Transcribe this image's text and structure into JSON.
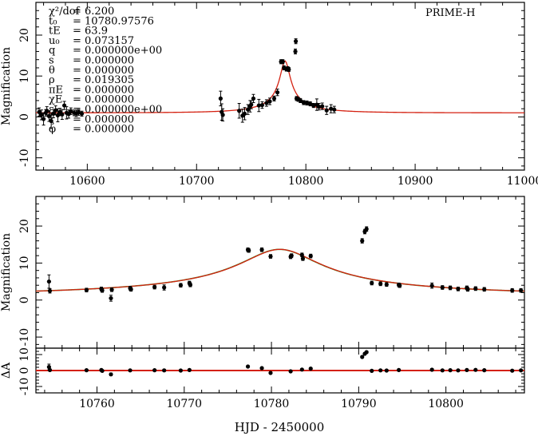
{
  "chart_data": [
    {
      "type": "scatter",
      "panel": "overview",
      "observatory": "PRIME-H",
      "ylabel": "Magnification",
      "xlabel": "",
      "xlim": [
        10553,
        11000
      ],
      "ylim": [
        -13,
        28
      ],
      "xticks": [
        10600,
        10700,
        10800,
        10900,
        11000
      ],
      "yticks": [
        -10,
        0,
        10,
        20
      ],
      "params": [
        {
          "name": "χ²/dof",
          "value": "= 6.200"
        },
        {
          "name": "t₀",
          "value": "= 10780.97576"
        },
        {
          "name": "tE",
          "value": "= 63.9"
        },
        {
          "name": "u₀",
          "value": "= 0.073157"
        },
        {
          "name": "q",
          "value": "= 0.000000e+00"
        },
        {
          "name": "s",
          "value": "= 0.000000"
        },
        {
          "name": "θ",
          "value": "= 0.000000"
        },
        {
          "name": "ρ",
          "value": "= 0.019305"
        },
        {
          "name": "πE",
          "value": "= 0.000000"
        },
        {
          "name": "χE",
          "value": "= 0.000000"
        },
        {
          "name": "ε",
          "value": "= 0.000000e+00"
        },
        {
          "name": "ξ",
          "value": "= 0.000000"
        },
        {
          "name": "φ",
          "value": "= 0.000000"
        }
      ],
      "model": {
        "t0": 10780.97576,
        "tE": 63.9,
        "u0": 0.073157,
        "color": "#d42010"
      },
      "points": [
        {
          "x": 10556,
          "y": 1.2,
          "err": 1.0
        },
        {
          "x": 10558,
          "y": 0.5,
          "err": 1.2
        },
        {
          "x": 10560,
          "y": -0.5,
          "err": 1.5
        },
        {
          "x": 10562,
          "y": 1.0,
          "err": 0.8
        },
        {
          "x": 10563,
          "y": 1.5,
          "err": 1.0
        },
        {
          "x": 10565,
          "y": 0.2,
          "err": 1.3
        },
        {
          "x": 10567,
          "y": -1.0,
          "err": 1.8
        },
        {
          "x": 10569,
          "y": 0.8,
          "err": 1.0
        },
        {
          "x": 10571,
          "y": 1.6,
          "err": 1.1
        },
        {
          "x": 10573,
          "y": 0.4,
          "err": 1.6
        },
        {
          "x": 10575,
          "y": 1.2,
          "err": 0.9
        },
        {
          "x": 10577,
          "y": 0.6,
          "err": 1.2
        },
        {
          "x": 10579,
          "y": 2.8,
          "err": 1.0
        },
        {
          "x": 10581,
          "y": 1.0,
          "err": 1.5
        },
        {
          "x": 10583,
          "y": 0.7,
          "err": 1.0
        },
        {
          "x": 10585,
          "y": 1.4,
          "err": 0.8
        },
        {
          "x": 10588,
          "y": 1.0,
          "err": 0.7
        },
        {
          "x": 10590,
          "y": 0.9,
          "err": 0.8
        },
        {
          "x": 10592,
          "y": 1.1,
          "err": 0.7
        },
        {
          "x": 10595,
          "y": 0.8,
          "err": 0.6
        },
        {
          "x": 10722,
          "y": 4.5,
          "err": 1.8
        },
        {
          "x": 10723,
          "y": 1.2,
          "err": 2.0
        },
        {
          "x": 10724,
          "y": 0.5,
          "err": 1.5
        },
        {
          "x": 10739,
          "y": 1.5,
          "err": 1.8
        },
        {
          "x": 10742,
          "y": 0.3,
          "err": 1.6
        },
        {
          "x": 10744,
          "y": 0.8,
          "err": 1.5
        },
        {
          "x": 10747,
          "y": 1.8,
          "err": 1.2
        },
        {
          "x": 10749,
          "y": 2.6,
          "err": 1.4
        },
        {
          "x": 10750,
          "y": 3.0,
          "err": 1.0
        },
        {
          "x": 10752,
          "y": 4.5,
          "err": 1.0
        },
        {
          "x": 10757,
          "y": 2.8,
          "err": 1.5
        },
        {
          "x": 10760,
          "y": 2.9,
          "err": 0.8
        },
        {
          "x": 10764,
          "y": 3.4,
          "err": 0.8
        },
        {
          "x": 10767,
          "y": 3.8,
          "err": 0.8
        },
        {
          "x": 10771,
          "y": 4.5,
          "err": 0.6
        },
        {
          "x": 10774,
          "y": 6.0,
          "err": 0.8
        },
        {
          "x": 10777.3,
          "y": 13.5,
          "err": 0.5
        },
        {
          "x": 10778.9,
          "y": 13.5,
          "err": 0.5
        },
        {
          "x": 10780,
          "y": 12.0,
          "err": 0.5
        },
        {
          "x": 10782.2,
          "y": 11.7,
          "err": 0.5
        },
        {
          "x": 10783.5,
          "y": 11.8,
          "err": 0.5
        },
        {
          "x": 10784.4,
          "y": 11.6,
          "err": 0.5
        },
        {
          "x": 10790.4,
          "y": 16.0,
          "err": 0.6
        },
        {
          "x": 10790.8,
          "y": 18.5,
          "err": 0.6
        },
        {
          "x": 10791.5,
          "y": 4.5,
          "err": 0.5
        },
        {
          "x": 10793,
          "y": 4.3,
          "err": 0.5
        },
        {
          "x": 10795,
          "y": 4.0,
          "err": 0.5
        },
        {
          "x": 10798,
          "y": 3.5,
          "err": 0.5
        },
        {
          "x": 10801,
          "y": 3.4,
          "err": 0.5
        },
        {
          "x": 10804,
          "y": 3.2,
          "err": 0.5
        },
        {
          "x": 10807,
          "y": 2.8,
          "err": 0.5
        },
        {
          "x": 10810,
          "y": 3.0,
          "err": 1.4
        },
        {
          "x": 10812,
          "y": 2.5,
          "err": 0.8
        },
        {
          "x": 10815,
          "y": 2.6,
          "err": 0.8
        },
        {
          "x": 10819,
          "y": 1.6,
          "err": 1.0
        },
        {
          "x": 10823,
          "y": 2.0,
          "err": 1.0
        },
        {
          "x": 10826,
          "y": 1.8,
          "err": 0.8
        }
      ]
    },
    {
      "type": "scatter",
      "panel": "zoom",
      "ylabel": "Magnification",
      "xlabel": "",
      "xlim": [
        10753,
        10809
      ],
      "ylim": [
        -13,
        28
      ],
      "xticks": [
        10760,
        10770,
        10780,
        10790,
        10800
      ],
      "yticks": [
        -10,
        0,
        10,
        20
      ],
      "models": [
        {
          "name": "model-green",
          "color": "#3a9a2a"
        },
        {
          "name": "model-red",
          "color": "#d42010"
        }
      ],
      "points": [
        {
          "x": 10754.5,
          "y": 5.0,
          "err": 1.8
        },
        {
          "x": 10754.6,
          "y": 2.5,
          "err": 0.6
        },
        {
          "x": 10758.8,
          "y": 2.7,
          "err": 0.5
        },
        {
          "x": 10760.5,
          "y": 3.0,
          "err": 0.5
        },
        {
          "x": 10760.6,
          "y": 2.6,
          "err": 0.5
        },
        {
          "x": 10761.6,
          "y": 0.5,
          "err": 0.8
        },
        {
          "x": 10761.7,
          "y": 2.8,
          "err": 0.5
        },
        {
          "x": 10763.8,
          "y": 3.2,
          "err": 0.5
        },
        {
          "x": 10763.9,
          "y": 2.9,
          "err": 0.5
        },
        {
          "x": 10766.6,
          "y": 3.5,
          "err": 0.5
        },
        {
          "x": 10767.7,
          "y": 3.4,
          "err": 0.7
        },
        {
          "x": 10769.6,
          "y": 4.0,
          "err": 0.5
        },
        {
          "x": 10770.6,
          "y": 4.6,
          "err": 0.5
        },
        {
          "x": 10770.7,
          "y": 4.1,
          "err": 0.5
        },
        {
          "x": 10777.3,
          "y": 13.6,
          "err": 0.5
        },
        {
          "x": 10777.4,
          "y": 13.4,
          "err": 0.5
        },
        {
          "x": 10778.9,
          "y": 13.6,
          "err": 0.5
        },
        {
          "x": 10779.9,
          "y": 11.8,
          "err": 0.5
        },
        {
          "x": 10782.2,
          "y": 11.7,
          "err": 0.5
        },
        {
          "x": 10782.3,
          "y": 12.0,
          "err": 0.5
        },
        {
          "x": 10783.5,
          "y": 12.2,
          "err": 0.5
        },
        {
          "x": 10783.6,
          "y": 11.2,
          "err": 0.5
        },
        {
          "x": 10784.5,
          "y": 11.9,
          "err": 0.5
        },
        {
          "x": 10790.4,
          "y": 16.0,
          "err": 0.6
        },
        {
          "x": 10790.7,
          "y": 18.5,
          "err": 0.6
        },
        {
          "x": 10790.9,
          "y": 19.2,
          "err": 0.6
        },
        {
          "x": 10791.5,
          "y": 4.6,
          "err": 0.5
        },
        {
          "x": 10792.5,
          "y": 4.4,
          "err": 0.5
        },
        {
          "x": 10793.2,
          "y": 4.2,
          "err": 0.5
        },
        {
          "x": 10794.6,
          "y": 4.1,
          "err": 0.5
        },
        {
          "x": 10794.7,
          "y": 3.9,
          "err": 0.5
        },
        {
          "x": 10798.4,
          "y": 3.9,
          "err": 0.7
        },
        {
          "x": 10799.6,
          "y": 3.4,
          "err": 0.5
        },
        {
          "x": 10800.5,
          "y": 3.3,
          "err": 0.5
        },
        {
          "x": 10801.4,
          "y": 3.0,
          "err": 0.5
        },
        {
          "x": 10802.4,
          "y": 3.3,
          "err": 0.5
        },
        {
          "x": 10802.5,
          "y": 2.9,
          "err": 0.5
        },
        {
          "x": 10803.4,
          "y": 3.1,
          "err": 0.5
        },
        {
          "x": 10804.4,
          "y": 2.9,
          "err": 0.5
        },
        {
          "x": 10807.6,
          "y": 2.6,
          "err": 0.5
        },
        {
          "x": 10808.6,
          "y": 2.6,
          "err": 0.5
        }
      ]
    },
    {
      "type": "scatter",
      "panel": "residuals",
      "ylabel": "ΔA",
      "xlabel": "HJD - 2450000",
      "xlim": [
        10753,
        10809
      ],
      "ylim": [
        -14,
        14
      ],
      "xticks": [
        10760,
        10770,
        10780,
        10790,
        10800
      ],
      "yticks": [
        -10,
        0,
        10
      ],
      "ytick_labels": [
        "-10",
        "0",
        "10"
      ],
      "points": [
        {
          "x": 10754.5,
          "y": 2.2,
          "err": 1.8
        },
        {
          "x": 10754.6,
          "y": 0.3,
          "err": 0.6
        },
        {
          "x": 10758.8,
          "y": 0.2,
          "err": 0.5
        },
        {
          "x": 10760.5,
          "y": 0.3,
          "err": 0.5
        },
        {
          "x": 10760.6,
          "y": -0.2,
          "err": 0.5
        },
        {
          "x": 10761.6,
          "y": -2.4,
          "err": 0.8
        },
        {
          "x": 10763.8,
          "y": 0.1,
          "err": 0.5
        },
        {
          "x": 10766.6,
          "y": 0.2,
          "err": 0.5
        },
        {
          "x": 10767.7,
          "y": 0.1,
          "err": 0.7
        },
        {
          "x": 10769.6,
          "y": 0.0,
          "err": 0.5
        },
        {
          "x": 10770.6,
          "y": 0.3,
          "err": 0.5
        },
        {
          "x": 10777.3,
          "y": 2.5,
          "err": 0.5
        },
        {
          "x": 10778.9,
          "y": 1.5,
          "err": 0.5
        },
        {
          "x": 10779.9,
          "y": -1.5,
          "err": 0.5
        },
        {
          "x": 10782.2,
          "y": -0.5,
          "err": 0.5
        },
        {
          "x": 10783.5,
          "y": 0.6,
          "err": 0.5
        },
        {
          "x": 10784.5,
          "y": 1.2,
          "err": 0.5
        },
        {
          "x": 10790.4,
          "y": 8.5,
          "err": 0.6
        },
        {
          "x": 10790.7,
          "y": 10.5,
          "err": 0.6
        },
        {
          "x": 10790.9,
          "y": 11.5,
          "err": 0.6
        },
        {
          "x": 10791.5,
          "y": -0.2,
          "err": 0.5
        },
        {
          "x": 10792.5,
          "y": 0.1,
          "err": 0.5
        },
        {
          "x": 10793.2,
          "y": 0.0,
          "err": 0.5
        },
        {
          "x": 10794.6,
          "y": 0.3,
          "err": 0.5
        },
        {
          "x": 10798.4,
          "y": 0.5,
          "err": 0.7
        },
        {
          "x": 10799.6,
          "y": 0.1,
          "err": 0.5
        },
        {
          "x": 10800.5,
          "y": 0.2,
          "err": 0.5
        },
        {
          "x": 10801.4,
          "y": 0.1,
          "err": 0.5
        },
        {
          "x": 10802.4,
          "y": 0.3,
          "err": 0.5
        },
        {
          "x": 10803.4,
          "y": 0.4,
          "err": 0.5
        },
        {
          "x": 10804.4,
          "y": 0.2,
          "err": 0.5
        },
        {
          "x": 10807.6,
          "y": -0.1,
          "err": 0.5
        },
        {
          "x": 10808.6,
          "y": 0.1,
          "err": 0.5
        }
      ],
      "zero_line_color": "#d42010"
    }
  ]
}
